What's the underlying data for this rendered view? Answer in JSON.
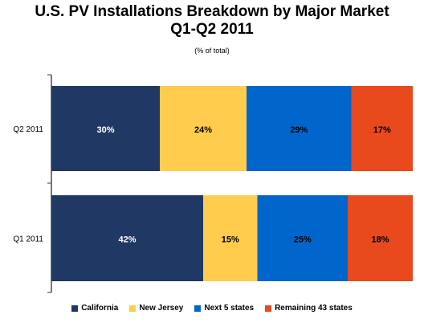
{
  "title_line1": "U.S. PV Installations Breakdown by Major Market",
  "title_line2": "Q1-Q2 2011",
  "subtitle": "(% of total)",
  "chart_data": {
    "type": "bar",
    "orientation": "horizontal",
    "stacked": true,
    "categories": [
      "Q2 2011",
      "Q1 2011"
    ],
    "series": [
      {
        "name": "California",
        "values": [
          30,
          42
        ],
        "color": "#1f3864",
        "label_color": "#ffffff"
      },
      {
        "name": "New Jersey",
        "values": [
          24,
          15
        ],
        "color": "#ffcc4d",
        "label_color": "#000000"
      },
      {
        "name": "Next 5 states",
        "values": [
          29,
          25
        ],
        "color": "#0066cc",
        "label_color": "#000000"
      },
      {
        "name": "Remaining 43 states",
        "values": [
          17,
          18
        ],
        "color": "#e8491d",
        "label_color": "#000000"
      }
    ],
    "data_labels": [
      [
        "30%",
        "42%"
      ],
      [
        "24%",
        "15%"
      ],
      [
        "29%",
        "25%"
      ],
      [
        "17%",
        "18%"
      ]
    ],
    "xlim": [
      0,
      100
    ],
    "legend_position": "bottom",
    "grid": false
  }
}
